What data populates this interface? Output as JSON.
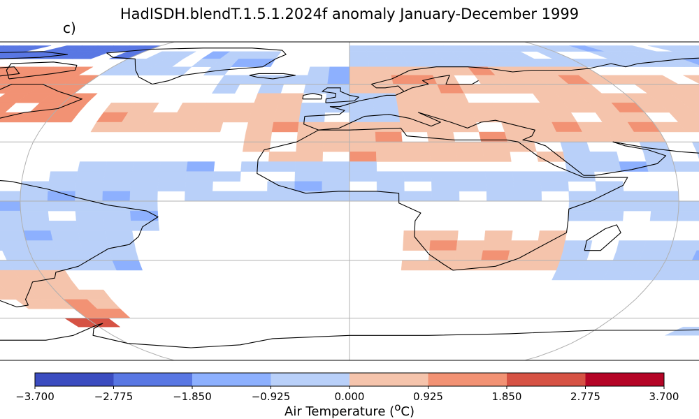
{
  "map": {
    "title": "HadISDH.blendT.1.5.1.2024f anomaly January-December 1999",
    "panel_label": "c)",
    "projection": "Robinson",
    "variable": "Air Temperature",
    "unit_sup": "o",
    "unit_after": "C)",
    "colorbar": {
      "label_prefix": "Air Temperature (",
      "ticks": [
        "−3.700",
        "−2.775",
        "−1.850",
        "−0.925",
        "0.000",
        "0.925",
        "1.850",
        "2.775",
        "3.700"
      ],
      "colors": [
        "#3b4cc0",
        "#5977e3",
        "#8db0fe",
        "#b9d0f9",
        "#f5c4ac",
        "#f29274",
        "#d65244",
        "#b40426"
      ],
      "range": [
        -3.7,
        3.7
      ]
    },
    "grid_colors": {
      "border": "#000000",
      "gridline": "#b0b0b0",
      "coast": "#000000"
    }
  }
}
